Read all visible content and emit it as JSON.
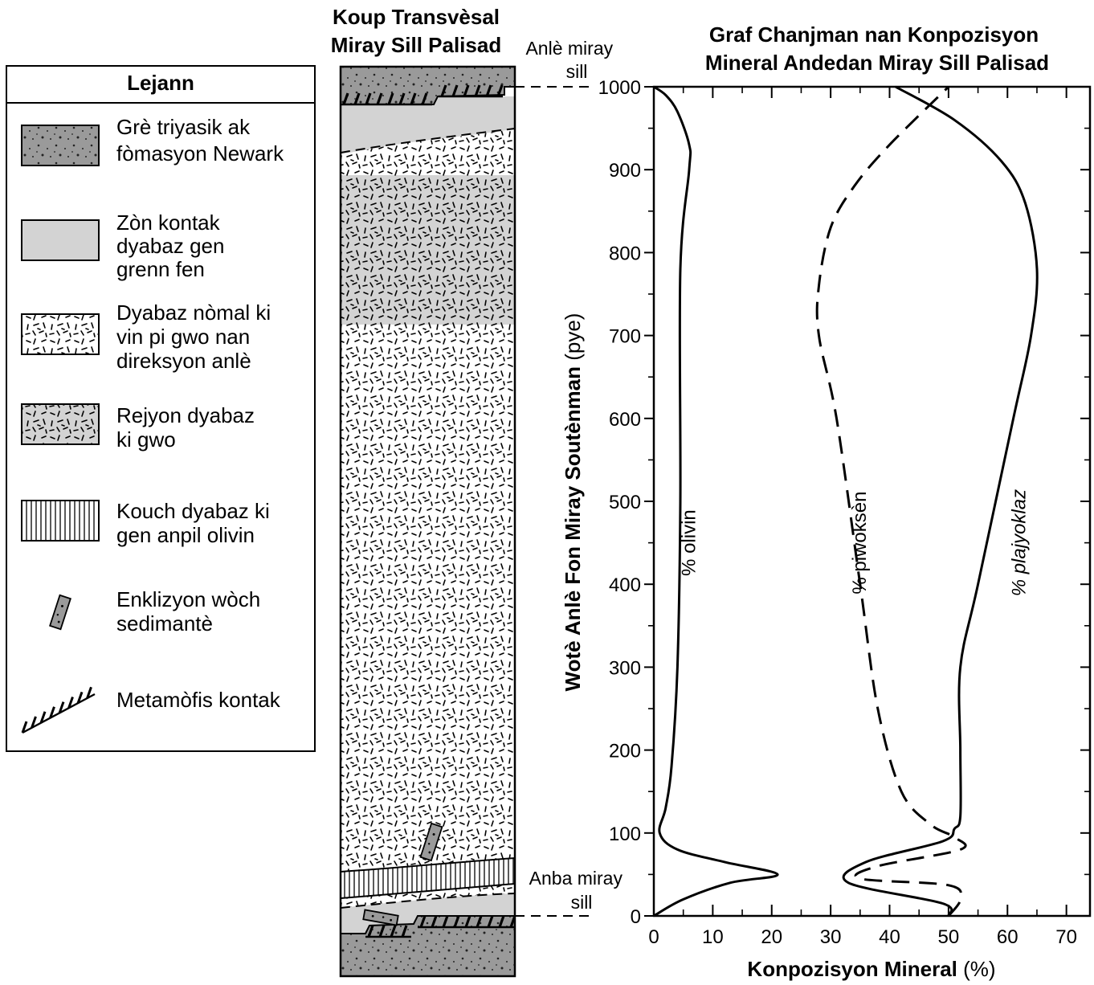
{
  "legend": {
    "title": "Lejann",
    "items": [
      {
        "key": "sandstone",
        "lines": [
          "Grè triyasik ak",
          "fòmasyon Newark"
        ]
      },
      {
        "key": "contact-zone",
        "lines": [
          "Zòn kontak",
          "dyabaz gen",
          "grenn fen"
        ]
      },
      {
        "key": "normal-diabase",
        "lines": [
          "Dyabaz nòmal ki",
          "vin pi gwo nan",
          "direksyon anlè"
        ]
      },
      {
        "key": "coarse-diabase",
        "lines": [
          "Rejyon dyabaz",
          "ki gwo"
        ]
      },
      {
        "key": "olivine-layer",
        "lines": [
          "Kouch dyabaz ki",
          "gen anpil olivin"
        ]
      },
      {
        "key": "xenolith",
        "lines": [
          "Enklizyon wòch",
          "sedimantè"
        ]
      },
      {
        "key": "metamorphic-contact",
        "lines": [
          "Metamòfis kontak"
        ]
      }
    ]
  },
  "cross_section": {
    "title_line1": "Koup Transvèsal",
    "title_line2": "Miray Sill Palisad",
    "top_label_line1": "Anlè miray",
    "top_label_line2": "sill",
    "bottom_label_line1": "Anba miray",
    "bottom_label_line2": "sill"
  },
  "chart_data": {
    "type": "line",
    "title_line1": "Graf Chanjman nan Konpozisyon",
    "title_line2": "Mineral Andedan Miray Sill Palisad",
    "ylabel_bold": "Wotè Anlè Fon Miray Soutènman",
    "ylabel_unit": "(pye)",
    "xlabel_bold": "Konpozisyon Mineral",
    "xlabel_unit": "(%)",
    "xlim": [
      0,
      74
    ],
    "ylim": [
      0,
      1000
    ],
    "xticks": [
      0,
      10,
      20,
      30,
      40,
      50,
      60,
      70
    ],
    "yticks": [
      0,
      100,
      200,
      300,
      400,
      500,
      600,
      700,
      800,
      900,
      1000
    ],
    "series": [
      {
        "name": "% olivin",
        "style": "solid",
        "label_at": [
          7,
          450
        ],
        "points": [
          [
            0,
            0
          ],
          [
            5,
            20
          ],
          [
            13,
            40
          ],
          [
            21,
            50
          ],
          [
            12,
            65
          ],
          [
            4,
            80
          ],
          [
            1,
            100
          ],
          [
            2,
            130
          ],
          [
            3,
            180
          ],
          [
            4,
            300
          ],
          [
            4.5,
            500
          ],
          [
            4.5,
            780
          ],
          [
            6,
            900
          ],
          [
            6,
            930
          ],
          [
            4,
            970
          ],
          [
            2,
            990
          ],
          [
            0,
            1000
          ]
        ]
      },
      {
        "name": "% piwoksèn",
        "style": "dashed",
        "label_at": [
          36,
          450
        ],
        "points": [
          [
            50,
            0
          ],
          [
            52,
            20
          ],
          [
            50,
            37
          ],
          [
            35,
            45
          ],
          [
            38,
            60
          ],
          [
            52,
            80
          ],
          [
            51,
            95
          ],
          [
            47,
            110
          ],
          [
            42,
            150
          ],
          [
            38,
            250
          ],
          [
            35,
            400
          ],
          [
            31,
            600
          ],
          [
            28,
            700
          ],
          [
            28,
            760
          ],
          [
            30,
            830
          ],
          [
            34,
            880
          ],
          [
            40,
            930
          ],
          [
            50,
            1000
          ]
        ]
      },
      {
        "name": "% plajyoklaz",
        "style": "solid",
        "label_at": [
          63,
          450
        ],
        "points": [
          [
            50,
            0
          ],
          [
            49,
            15
          ],
          [
            33,
            40
          ],
          [
            36,
            65
          ],
          [
            49,
            90
          ],
          [
            51,
            105
          ],
          [
            52,
            120
          ],
          [
            52,
            200
          ],
          [
            52,
            300
          ],
          [
            55,
            400
          ],
          [
            61,
            600
          ],
          [
            64,
            700
          ],
          [
            65,
            780
          ],
          [
            63,
            860
          ],
          [
            59,
            910
          ],
          [
            51,
            960
          ],
          [
            41,
            1000
          ]
        ]
      }
    ]
  }
}
